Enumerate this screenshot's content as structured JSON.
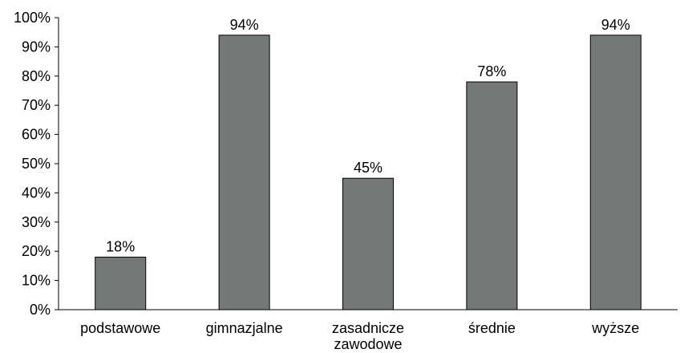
{
  "chart_data": {
    "type": "bar",
    "categories": [
      "podstawowe",
      "gimnazjalne",
      "zasadnicze zawodowe",
      "średnie",
      "wyższe"
    ],
    "category_lines": [
      [
        "podstawowe"
      ],
      [
        "gimnazjalne"
      ],
      [
        "zasadnicze",
        "zawodowe"
      ],
      [
        "średnie"
      ],
      [
        "wyższe"
      ]
    ],
    "values": [
      18,
      94,
      45,
      78,
      94
    ],
    "data_labels": [
      "18%",
      "94%",
      "45%",
      "78%",
      "94%"
    ],
    "title": "",
    "xlabel": "",
    "ylabel": "",
    "ylim": [
      0,
      100
    ],
    "y_ticks": [
      0,
      10,
      20,
      30,
      40,
      50,
      60,
      70,
      80,
      90,
      100
    ],
    "y_tick_labels": [
      "0%",
      "10%",
      "20%",
      "30%",
      "40%",
      "50%",
      "60%",
      "70%",
      "80%",
      "90%",
      "100%"
    ],
    "grid": false,
    "legend": "none",
    "bar_color": "#747876",
    "bar_edge_color": "#000000"
  }
}
